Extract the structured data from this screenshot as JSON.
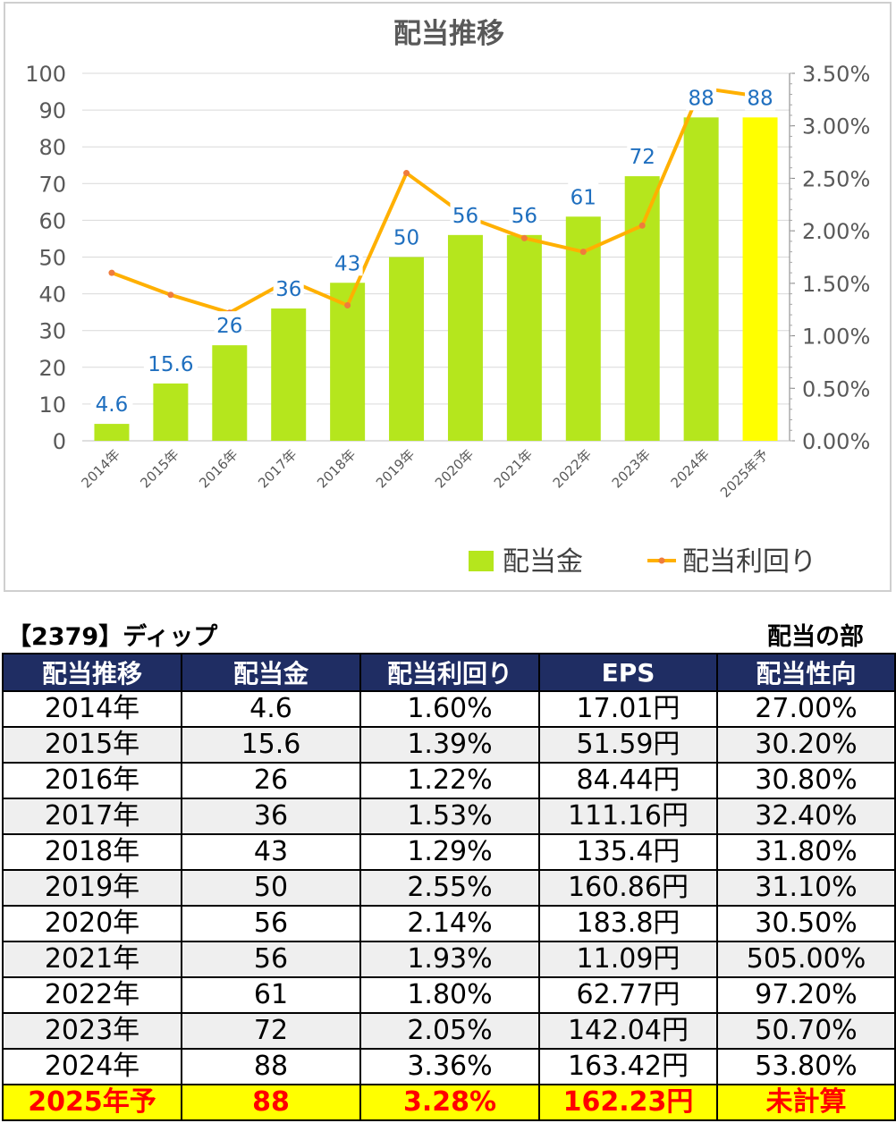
{
  "chart_data": {
    "type": "bar",
    "title": "配当推移",
    "categories": [
      "2014年",
      "2015年",
      "2016年",
      "2017年",
      "2018年",
      "2019年",
      "2020年",
      "2021年",
      "2022年",
      "2023年",
      "2024年",
      "2025年予"
    ],
    "series": [
      {
        "name": "配当金",
        "type": "bar",
        "axis": "left",
        "values": [
          4.6,
          15.6,
          26,
          36,
          43,
          50,
          56,
          56,
          61,
          72,
          88,
          88
        ],
        "data_labels": [
          "4.6",
          "15.6",
          "26",
          "36",
          "43",
          "50",
          "56",
          "56",
          "61",
          "72",
          "88",
          "88"
        ]
      },
      {
        "name": "配当利回り",
        "type": "line",
        "axis": "right",
        "values": [
          1.6,
          1.39,
          1.22,
          1.53,
          1.29,
          2.55,
          2.14,
          1.93,
          1.8,
          2.05,
          3.36,
          3.28
        ]
      }
    ],
    "y_left": {
      "range": [
        0,
        100
      ],
      "ticks": [
        "0",
        "10",
        "20",
        "30",
        "40",
        "50",
        "60",
        "70",
        "80",
        "90",
        "100"
      ]
    },
    "y_right": {
      "range": [
        0,
        3.5
      ],
      "unit": "%",
      "ticks": [
        "0.00%",
        "0.50%",
        "1.00%",
        "1.50%",
        "2.00%",
        "2.50%",
        "3.00%",
        "3.50%"
      ]
    },
    "grid": true,
    "legend_position": "bottom-right",
    "colors": {
      "bar": "#b5e61d",
      "bar_forecast": "#ffff00",
      "line": "#ffb000",
      "marker": "#ef7c3c",
      "data_label": "#1f6fbf",
      "axis_text": "#595959"
    }
  },
  "header": {
    "code_title": "【2379】ディップ",
    "section_label": "配当の部"
  },
  "table": {
    "columns": [
      "配当推移",
      "配当金",
      "配当利回り",
      "EPS",
      "配当性向"
    ],
    "rows": [
      [
        "2014年",
        "4.6",
        "1.60%",
        "17.01円",
        "27.00%"
      ],
      [
        "2015年",
        "15.6",
        "1.39%",
        "51.59円",
        "30.20%"
      ],
      [
        "2016年",
        "26",
        "1.22%",
        "84.44円",
        "30.80%"
      ],
      [
        "2017年",
        "36",
        "1.53%",
        "111.16円",
        "32.40%"
      ],
      [
        "2018年",
        "43",
        "1.29%",
        "135.4円",
        "31.80%"
      ],
      [
        "2019年",
        "50",
        "2.55%",
        "160.86円",
        "31.10%"
      ],
      [
        "2020年",
        "56",
        "2.14%",
        "183.8円",
        "30.50%"
      ],
      [
        "2021年",
        "56",
        "1.93%",
        "11.09円",
        "505.00%"
      ],
      [
        "2022年",
        "61",
        "1.80%",
        "62.77円",
        "97.20%"
      ],
      [
        "2023年",
        "72",
        "2.05%",
        "142.04円",
        "50.70%"
      ],
      [
        "2024年",
        "88",
        "3.36%",
        "163.42円",
        "53.80%"
      ],
      [
        "2025年予",
        "88",
        "3.28%",
        "162.23円",
        "未計算"
      ]
    ],
    "header_color": "#1f2d63",
    "forecast_row_color": "#ffff00",
    "forecast_text_color": "#ff0000"
  }
}
